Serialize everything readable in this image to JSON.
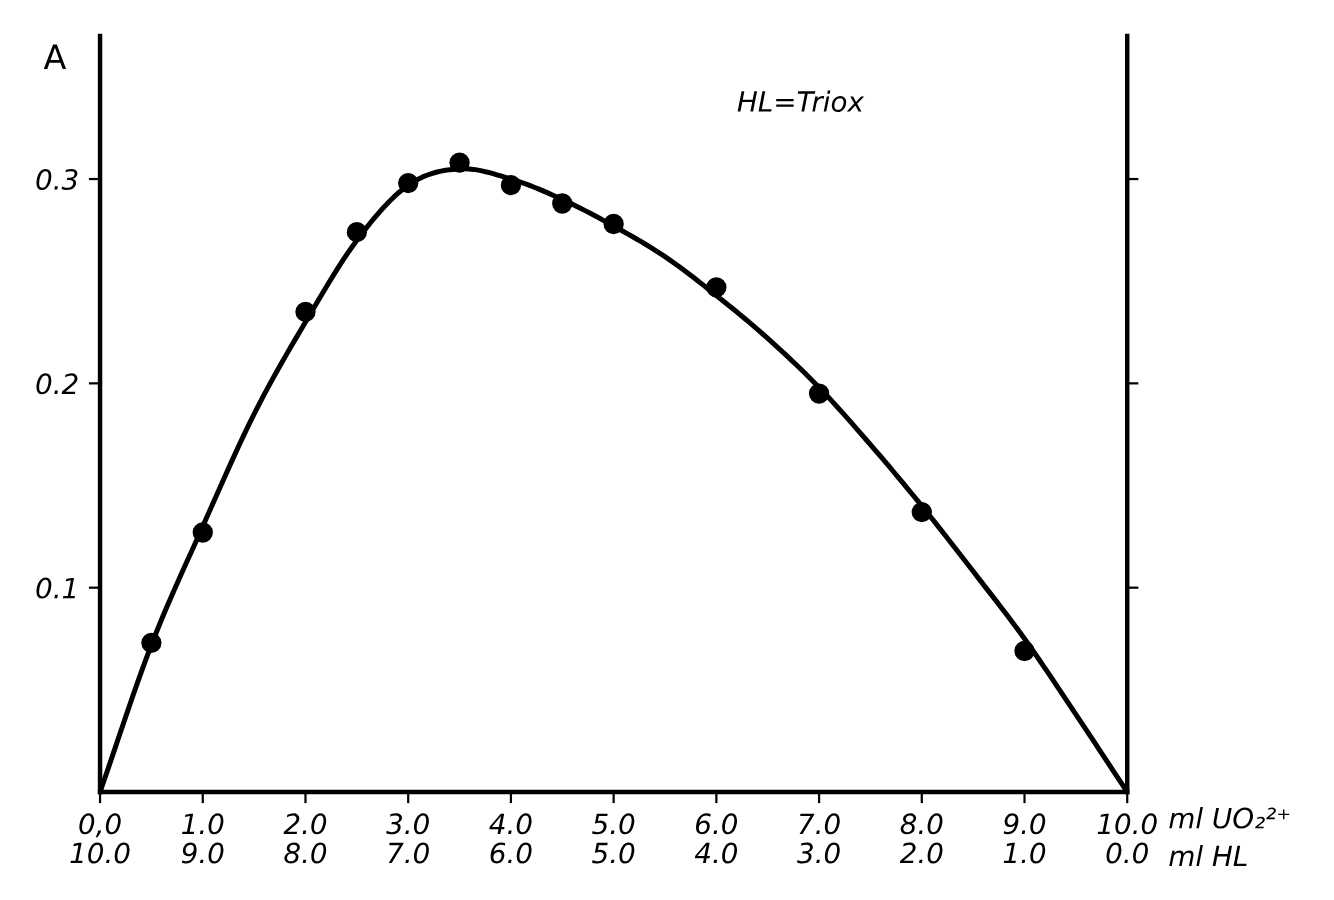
{
  "chart_data": {
    "type": "scatter",
    "ylabel": "A",
    "xlabel": "ml UO₂²⁺",
    "x2label": "ml HL",
    "annotations": [
      "HL=Triox"
    ],
    "xlim": [
      0,
      10
    ],
    "ylim": [
      0,
      0.37
    ],
    "xticks": [
      {
        "value": 0,
        "label": "0,0"
      },
      {
        "value": 1,
        "label": "1.0"
      },
      {
        "value": 2,
        "label": "2.0"
      },
      {
        "value": 3,
        "label": "3.0"
      },
      {
        "value": 4,
        "label": "4.0"
      },
      {
        "value": 5,
        "label": "5.0"
      },
      {
        "value": 6,
        "label": "6.0"
      },
      {
        "value": 7,
        "label": "7.0"
      },
      {
        "value": 8,
        "label": "8.0"
      },
      {
        "value": 9,
        "label": "9.0"
      },
      {
        "value": 10,
        "label": "10.0"
      }
    ],
    "x2lim": [
      10,
      0
    ],
    "x2ticks": [
      {
        "value": 10,
        "label": "10.0"
      },
      {
        "value": 9,
        "label": "9.0"
      },
      {
        "value": 8,
        "label": "8.0"
      },
      {
        "value": 7,
        "label": "7.0"
      },
      {
        "value": 6,
        "label": "6.0"
      },
      {
        "value": 5,
        "label": "5.0"
      },
      {
        "value": 4,
        "label": "4.0"
      },
      {
        "value": 3,
        "label": "3.0"
      },
      {
        "value": 2,
        "label": "2.0"
      },
      {
        "value": 1,
        "label": "1.0"
      },
      {
        "value": 0,
        "label": "0.0"
      }
    ],
    "yticks": [
      {
        "value": 0.1,
        "label": "0.1"
      },
      {
        "value": 0.2,
        "label": "0.2"
      },
      {
        "value": 0.3,
        "label": "0.3"
      }
    ],
    "grid": false,
    "legend": false,
    "series": [
      {
        "color": "#000000",
        "marker": "circle",
        "x": [
          0.5,
          1.0,
          2.0,
          2.5,
          3.0,
          3.5,
          4.0,
          4.5,
          5.0,
          6.0,
          7.0,
          8.0,
          9.0
        ],
        "values": [
          0.073,
          0.127,
          0.235,
          0.274,
          0.298,
          0.308,
          0.297,
          0.288,
          0.278,
          0.247,
          0.195,
          0.137,
          0.069
        ]
      },
      {
        "type": "line",
        "color": "#000000",
        "marker": "none",
        "line_style": "solid",
        "x": [
          0,
          0.5,
          1,
          1.5,
          2,
          2.5,
          3,
          3.5,
          4,
          4.5,
          5,
          5.5,
          6,
          6.5,
          7,
          7.5,
          8,
          8.5,
          9,
          9.5,
          10
        ],
        "values": [
          0,
          0.072,
          0.13,
          0.185,
          0.23,
          0.27,
          0.297,
          0.305,
          0.3,
          0.29,
          0.277,
          0.262,
          0.243,
          0.222,
          0.198,
          0.17,
          0.14,
          0.108,
          0.075,
          0.038,
          0
        ]
      }
    ]
  }
}
